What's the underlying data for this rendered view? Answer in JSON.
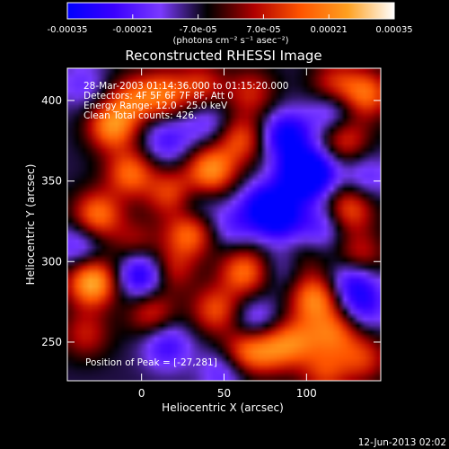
{
  "chart_data": {
    "type": "heatmap",
    "title": "Reconstructed RHESSI Image",
    "xlabel": "Heliocentric X (arcsec)",
    "ylabel": "Heliocentric Y (arcsec)",
    "xlim": [
      -45,
      145
    ],
    "ylim": [
      226,
      420
    ],
    "xticks": [
      0,
      50,
      100
    ],
    "yticks": [
      250,
      300,
      350,
      400
    ],
    "colorbar": {
      "range": [
        -0.00035,
        0.00035
      ],
      "tick_labels": [
        "-0.00035",
        "-0.00021",
        "-7.0e-05",
        "7.0e-05",
        "0.00021",
        "0.00035"
      ],
      "unit_label": "(photons cm⁻² s⁻¹ asec⁻²)",
      "colors": [
        "#0000ff",
        "#3a00ff",
        "#7a3aff",
        "#000000",
        "#b00000",
        "#ff5500",
        "#ffa020",
        "#ffffff"
      ]
    },
    "annotations": [
      "28-Mar-2003 01:14:36.000 to 01:15:20.000",
      "Detectors: 4F 5F 6F 7F 8F, Att 0",
      "Energy Range: 12.0 - 25.0 keV",
      "Clean    Total counts: 426."
    ],
    "peak_text": "Position of Peak = [-27,281]",
    "peak": [
      -27,
      281
    ],
    "features": [
      {
        "x": -30,
        "y": 287,
        "v": 1.0
      },
      {
        "x": -18,
        "y": 384,
        "v": 0.82
      },
      {
        "x": -27,
        "y": 329,
        "v": 0.75
      },
      {
        "x": -6,
        "y": 401,
        "v": 0.55
      },
      {
        "x": 13,
        "y": 404,
        "v": 0.65
      },
      {
        "x": 36,
        "y": 409,
        "v": 0.5
      },
      {
        "x": 66,
        "y": 405,
        "v": 0.45
      },
      {
        "x": 42,
        "y": 357,
        "v": 0.85
      },
      {
        "x": 60,
        "y": 376,
        "v": 0.6
      },
      {
        "x": -7,
        "y": 355,
        "v": 0.7
      },
      {
        "x": 18,
        "y": 342,
        "v": 0.62
      },
      {
        "x": 29,
        "y": 318,
        "v": 0.75
      },
      {
        "x": 45,
        "y": 270,
        "v": 0.6
      },
      {
        "x": 62,
        "y": 294,
        "v": 0.72
      },
      {
        "x": 63,
        "y": 244,
        "v": 0.68
      },
      {
        "x": 80,
        "y": 246,
        "v": 0.58
      },
      {
        "x": 6,
        "y": 268,
        "v": 0.5
      },
      {
        "x": 18,
        "y": 295,
        "v": 0.45
      },
      {
        "x": -34,
        "y": 255,
        "v": 0.42
      },
      {
        "x": 95,
        "y": 300,
        "v": 0.5
      },
      {
        "x": 105,
        "y": 277,
        "v": 0.8
      },
      {
        "x": 117,
        "y": 256,
        "v": 0.62
      },
      {
        "x": 95,
        "y": 251,
        "v": 0.55
      },
      {
        "x": 126,
        "y": 333,
        "v": 0.65
      },
      {
        "x": 132,
        "y": 303,
        "v": 0.5
      },
      {
        "x": 123,
        "y": 376,
        "v": 0.55
      },
      {
        "x": 136,
        "y": 404,
        "v": 0.7
      },
      {
        "x": 117,
        "y": 410,
        "v": 0.5
      },
      {
        "x": 111,
        "y": 231,
        "v": 0.5
      },
      {
        "x": 134,
        "y": 240,
        "v": 0.5
      },
      {
        "x": -4,
        "y": 312,
        "v": 0.35
      },
      {
        "x": 88,
        "y": 378,
        "v": -0.8
      },
      {
        "x": 96,
        "y": 353,
        "v": -0.85
      },
      {
        "x": 84,
        "y": 328,
        "v": -0.7
      },
      {
        "x": 90,
        "y": 298,
        "v": -0.5
      },
      {
        "x": 74,
        "y": 335,
        "v": -0.6
      },
      {
        "x": 69,
        "y": 263,
        "v": -0.4
      },
      {
        "x": 50,
        "y": 232,
        "v": -0.4
      },
      {
        "x": 15,
        "y": 248,
        "v": -0.5
      },
      {
        "x": 0,
        "y": 292,
        "v": -0.75
      },
      {
        "x": 15,
        "y": 375,
        "v": -0.45
      },
      {
        "x": 30,
        "y": 334,
        "v": -0.35
      },
      {
        "x": 128,
        "y": 288,
        "v": -0.6
      },
      {
        "x": 135,
        "y": 272,
        "v": -0.45
      },
      {
        "x": 106,
        "y": 356,
        "v": -0.55
      },
      {
        "x": 109,
        "y": 322,
        "v": -0.4
      },
      {
        "x": 116,
        "y": 393,
        "v": -0.45
      },
      {
        "x": 136,
        "y": 352,
        "v": -0.35
      },
      {
        "x": -38,
        "y": 310,
        "v": -0.4
      },
      {
        "x": 55,
        "y": 322,
        "v": -0.35
      },
      {
        "x": 40,
        "y": 386,
        "v": -0.35
      },
      {
        "x": -36,
        "y": 410,
        "v": -0.3
      }
    ]
  },
  "footer_date": "12-Jun-2013 02:02"
}
